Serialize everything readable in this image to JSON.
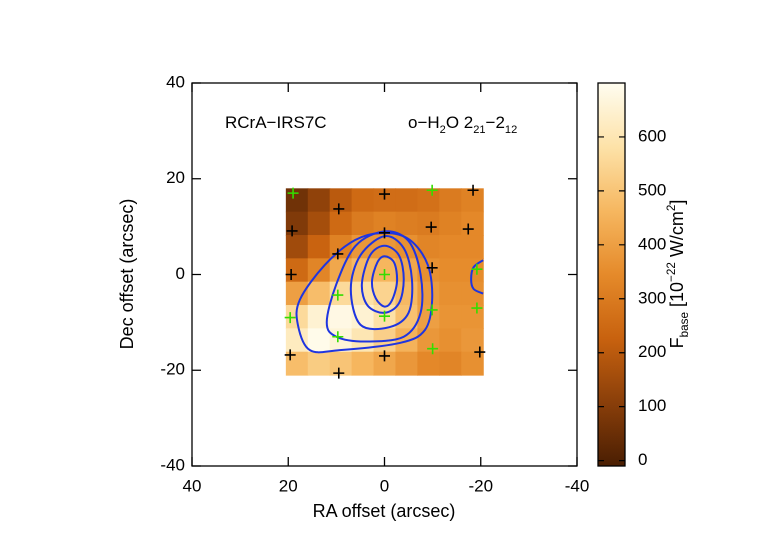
{
  "chart_data": {
    "type": "heatmap",
    "xlabel": "RA offset (arcsec)",
    "ylabel": "Dec offset (arcsec)",
    "xlim": [
      40,
      -40
    ],
    "xticks": [
      40,
      20,
      0,
      -20,
      -40
    ],
    "ylim": [
      -40,
      40
    ],
    "yticks": [
      -40,
      -20,
      0,
      20,
      40
    ],
    "annotations": [
      [
        {
          "text": "RCrA−IRS7C"
        }
      ],
      [
        {
          "text": "o−H"
        },
        {
          "text": "2",
          "sub": true
        },
        {
          "text": "O 2"
        },
        {
          "text": "21",
          "sub": true
        },
        {
          "text": "−2"
        },
        {
          "text": "12",
          "sub": true
        }
      ]
    ],
    "heatmap": {
      "x_extent": [
        20.5,
        -20.5
      ],
      "y_extent": [
        18,
        -21
      ],
      "z": [
        [
          60,
          120,
          200,
          250,
          260,
          260,
          270,
          300,
          320
        ],
        [
          90,
          160,
          250,
          300,
          320,
          310,
          300,
          320,
          340
        ],
        [
          150,
          230,
          320,
          380,
          380,
          360,
          330,
          340,
          340
        ],
        [
          250,
          330,
          420,
          470,
          460,
          420,
          360,
          350,
          350
        ],
        [
          400,
          480,
          560,
          580,
          540,
          470,
          390,
          360,
          360
        ],
        [
          560,
          650,
          680,
          650,
          580,
          490,
          400,
          370,
          370
        ],
        [
          620,
          690,
          660,
          600,
          530,
          450,
          380,
          360,
          380
        ],
        [
          480,
          520,
          500,
          460,
          420,
          380,
          340,
          330,
          360
        ]
      ]
    },
    "colormap": [
      "#4a1e02",
      "#8a3f0a",
      "#c8620f",
      "#e58a2a",
      "#f6b760",
      "#fde2a8",
      "#fffdf0"
    ],
    "clim": [
      -10,
      700
    ],
    "cticks": [
      0,
      100,
      200,
      300,
      400,
      500,
      600
    ],
    "clabel": [
      {
        "text": "F"
      },
      {
        "text": "base",
        "sub": true
      },
      {
        "text": " [10"
      },
      {
        "text": "−22",
        "sup": true
      },
      {
        "text": " W/cm"
      },
      {
        "text": "2",
        "sup": true
      },
      {
        "text": "]"
      }
    ],
    "contours": [
      {
        "color": "#1f35e0",
        "closed": true,
        "x": [
          17.6,
          12.4,
          6.1,
          -0.1,
          -5.3,
          -9.0,
          -9.9,
          -8.4,
          -3.2,
          9.3,
          15.5,
          18.0
        ],
        "y": [
          -5.3,
          2.0,
          7.2,
          8.7,
          7.2,
          2.0,
          -5.3,
          -11.6,
          -14.3,
          -15.8,
          -15.8,
          -10.5
        ]
      },
      {
        "color": "#1f35e0",
        "closed": true,
        "x": [
          12,
          10,
          6,
          0,
          -5,
          -7.5,
          -7.5,
          -4,
          4,
          10
        ],
        "y": [
          -10,
          -2,
          6,
          9,
          7,
          0,
          -8,
          -13,
          -14,
          -13
        ]
      },
      {
        "color": "#1f35e0",
        "closed": true,
        "x": [
          7,
          5,
          0,
          -4,
          -5.7,
          -5,
          -1,
          5
        ],
        "y": [
          -3,
          4,
          8,
          5.5,
          -1,
          -8,
          -11,
          -10.5
        ]
      },
      {
        "color": "#1f35e0",
        "closed": true,
        "x": [
          4.7,
          3,
          0,
          -3,
          -4,
          -3,
          0,
          3.5
        ],
        "y": [
          -2,
          4,
          6,
          4,
          -1,
          -6,
          -8,
          -6.5
        ]
      },
      {
        "color": "#1f35e0",
        "closed": true,
        "x": [
          2.6,
          1.5,
          0,
          -2,
          -2.6,
          -1.5,
          0,
          1.8
        ],
        "y": [
          -1.5,
          2.5,
          3.8,
          2.5,
          -1.5,
          -5.5,
          -6.7,
          -5
        ]
      },
      {
        "color": "#1f35e0",
        "closed": false,
        "x": [
          -20.5,
          -18.5,
          -18,
          -18.5,
          -20.5
        ],
        "y": [
          3,
          1.5,
          -1,
          -3,
          -4
        ]
      }
    ],
    "markers": [
      {
        "color": "#000000",
        "x": [
          9.5,
          0,
          -18.4,
          19.2,
          0,
          -9.7,
          -17.4,
          19.4,
          9.7,
          -9.9,
          19.6,
          0,
          -19.8,
          9.5
        ],
        "y": [
          13.7,
          16.8,
          17.6,
          9.1,
          8.7,
          9.9,
          9.5,
          0,
          4.3,
          1.4,
          -16.8,
          -17,
          -16.2,
          -20.6
        ]
      },
      {
        "color": "#33dd00",
        "x": [
          19,
          -9.9,
          0,
          -19.2,
          19.6,
          9.7,
          0,
          -9.9,
          -19.2,
          9.7,
          -10
        ],
        "y": [
          17,
          17.6,
          0,
          1.1,
          -9,
          -4.3,
          -8.7,
          -7.4,
          -7,
          -13,
          -15.5
        ]
      }
    ]
  }
}
